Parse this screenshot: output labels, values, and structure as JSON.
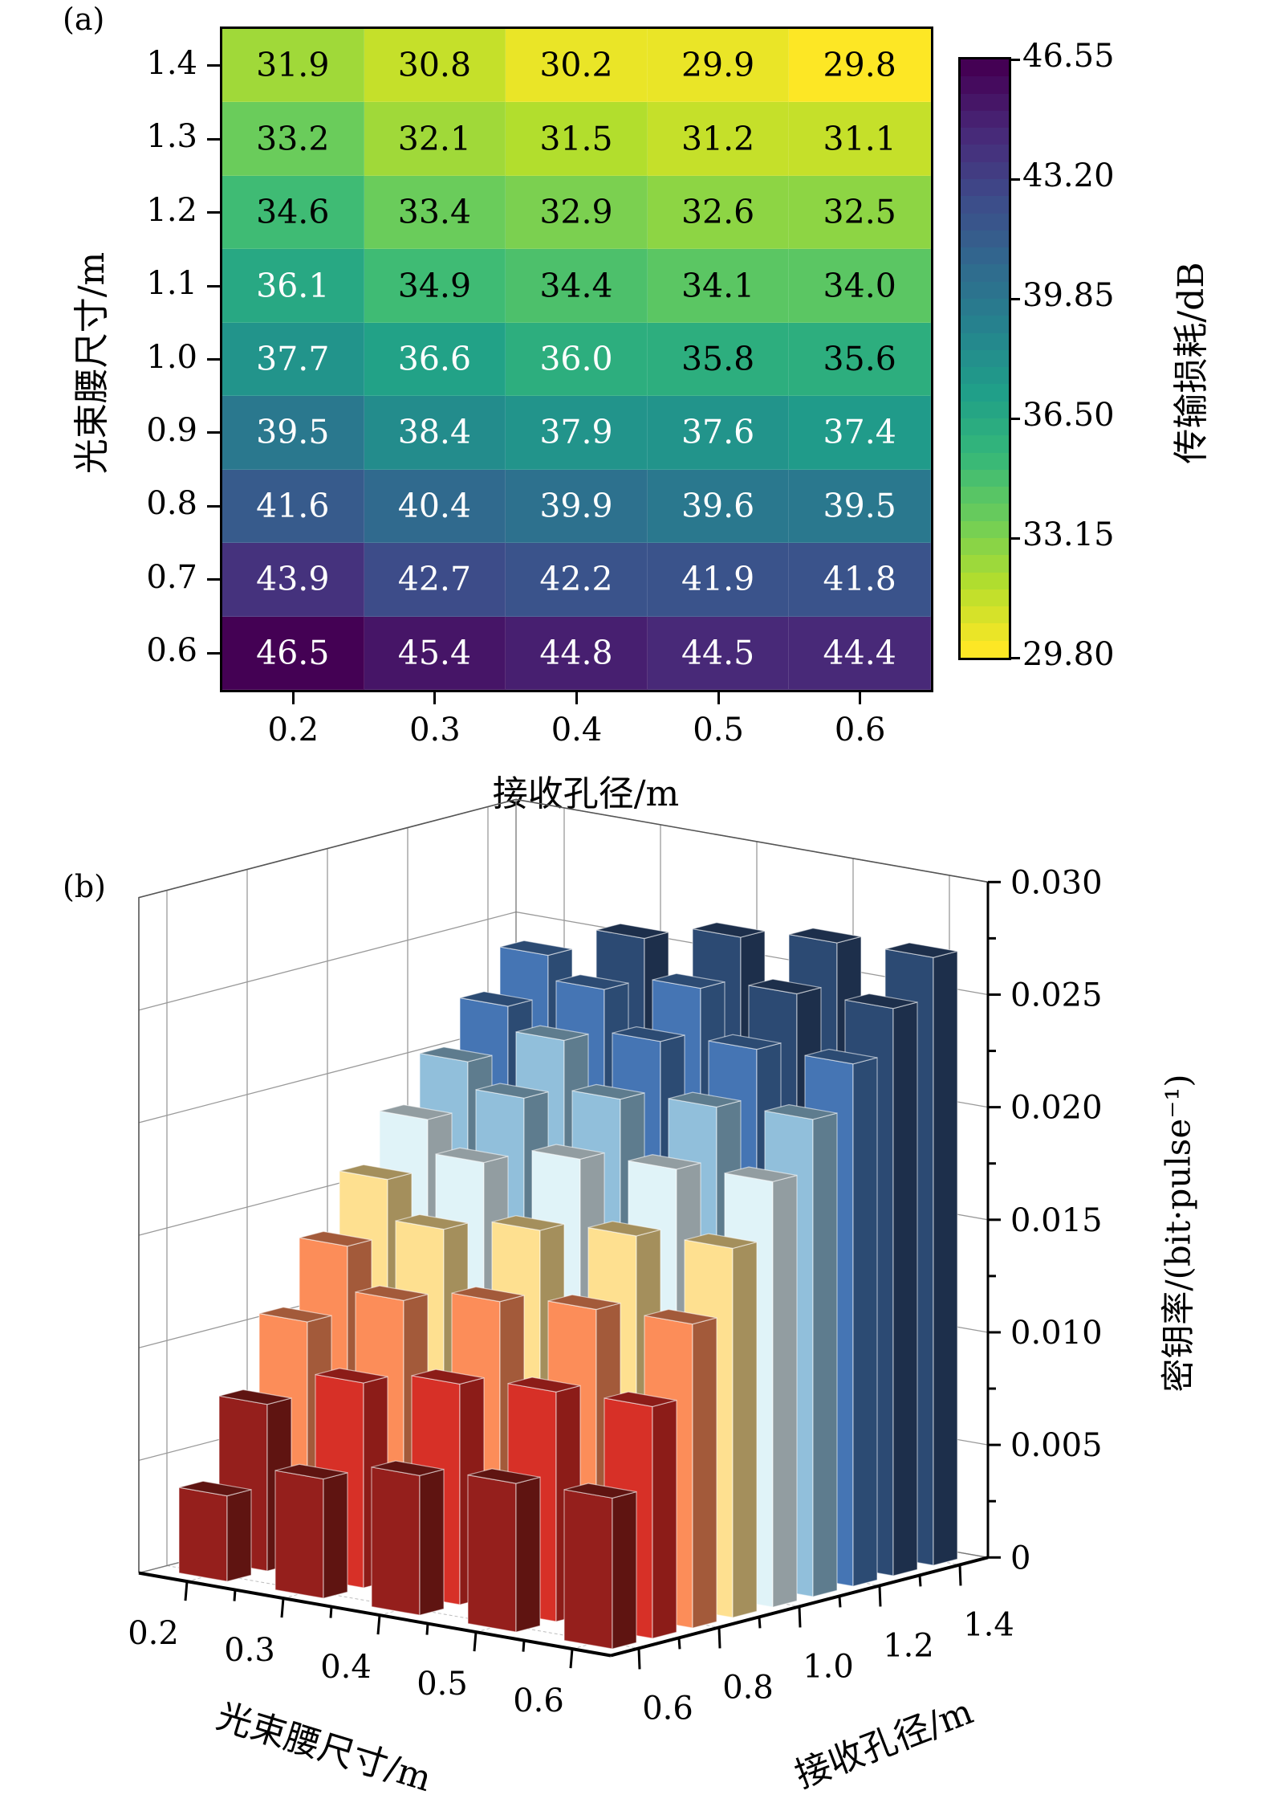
{
  "panels": {
    "a": {
      "label": "(a)",
      "chart_data": {
        "type": "heatmap",
        "title": "",
        "xlabel": "接收孔径/m",
        "ylabel": "光束腰尺寸/m",
        "x_categories": [
          "0.2",
          "0.3",
          "0.4",
          "0.5",
          "0.6"
        ],
        "y_categories": [
          "1.4",
          "1.3",
          "1.2",
          "1.1",
          "1.0",
          "0.9",
          "0.8",
          "0.7",
          "0.6"
        ],
        "values": [
          [
            31.9,
            30.8,
            30.2,
            29.9,
            29.8
          ],
          [
            33.2,
            32.1,
            31.5,
            31.2,
            31.1
          ],
          [
            34.6,
            33.4,
            32.9,
            32.6,
            32.5
          ],
          [
            36.1,
            34.9,
            34.4,
            34.1,
            34.0
          ],
          [
            37.7,
            36.6,
            36.0,
            35.8,
            35.6
          ],
          [
            39.5,
            38.4,
            37.9,
            37.6,
            37.4
          ],
          [
            41.6,
            40.4,
            39.9,
            39.6,
            39.5
          ],
          [
            43.9,
            42.7,
            42.2,
            41.9,
            41.8
          ],
          [
            46.5,
            45.4,
            44.8,
            44.5,
            44.4
          ]
        ],
        "value_labels": [
          [
            "31.9",
            "30.8",
            "30.2",
            "29.9",
            "29.8"
          ],
          [
            "33.2",
            "32.1",
            "31.5",
            "31.2",
            "31.1"
          ],
          [
            "34.6",
            "33.4",
            "32.9",
            "32.6",
            "32.5"
          ],
          [
            "36.1",
            "34.9",
            "34.4",
            "34.1",
            "34.0"
          ],
          [
            "37.7",
            "36.6",
            "36.0",
            "35.8",
            "35.6"
          ],
          [
            "39.5",
            "38.4",
            "37.9",
            "37.6",
            "37.4"
          ],
          [
            "41.6",
            "40.4",
            "39.9",
            "39.6",
            "39.5"
          ],
          [
            "43.9",
            "42.7",
            "42.2",
            "41.9",
            "41.8"
          ],
          [
            "46.5",
            "45.4",
            "44.8",
            "44.5",
            "44.4"
          ]
        ],
        "colormap": "viridis (reversed: high = dark purple)",
        "colorbar": {
          "label": "传输损耗/dB",
          "range": [
            29.8,
            46.55
          ],
          "ticks": [
            "46.55",
            "43.20",
            "39.85",
            "36.50",
            "33.15",
            "29.80"
          ],
          "levels": 35
        }
      }
    },
    "b": {
      "label": "(b)",
      "chart_data": {
        "type": "bar3d",
        "title": "",
        "xlabel": "光束腰尺寸/m",
        "ylabel": "接收孔径/m",
        "zlabel": "密钥率/(bit·pulse⁻¹)",
        "x_categories": [
          "0.2",
          "0.3",
          "0.4",
          "0.5",
          "0.6"
        ],
        "y_values": [
          0.6,
          0.7,
          0.8,
          0.9,
          1.0,
          1.1,
          1.2,
          1.3,
          1.4
        ],
        "y_tick_labels": [
          "0.6",
          "0.8",
          "1.0",
          "1.2",
          "1.4"
        ],
        "z_tick_labels": [
          "0",
          "0.005",
          "0.010",
          "0.015",
          "0.020",
          "0.025",
          "0.030"
        ],
        "zlim": [
          0,
          0.03
        ],
        "values_by_y": [
          [
            0.0038,
            0.0053,
            0.0062,
            0.0066,
            0.0067
          ],
          [
            0.0074,
            0.0091,
            0.0098,
            0.0102,
            0.0103
          ],
          [
            0.0106,
            0.0123,
            0.013,
            0.0134,
            0.0135
          ],
          [
            0.0135,
            0.015,
            0.0157,
            0.0162,
            0.0164
          ],
          [
            0.016,
            0.0175,
            0.0184,
            0.0187,
            0.0189
          ],
          [
            0.0182,
            0.0199,
            0.0206,
            0.021,
            0.0212
          ],
          [
            0.0203,
            0.022,
            0.0227,
            0.0231,
            0.0232
          ],
          [
            0.0223,
            0.0238,
            0.0246,
            0.0251,
            0.0252
          ],
          [
            0.0241,
            0.0256,
            0.0264,
            0.0269,
            0.027
          ]
        ],
        "color_levels": [
          {
            "max": 0.0075,
            "front": "#951f1c",
            "side": "#5f1411"
          },
          {
            "max": 0.0105,
            "front": "#d73027",
            "side": "#8c1c18"
          },
          {
            "max": 0.0135,
            "front": "#fc8d59",
            "side": "#a35a3a"
          },
          {
            "max": 0.0165,
            "front": "#fee090",
            "side": "#a48f5c"
          },
          {
            "max": 0.019,
            "front": "#e0f3f8",
            "side": "#929da1"
          },
          {
            "max": 0.022,
            "front": "#91bfdb",
            "side": "#5e7c8e"
          },
          {
            "max": 0.025,
            "front": "#4575b4",
            "side": "#2c4b73"
          },
          {
            "max": 1.0,
            "front": "#2c4a73",
            "side": "#1d2f4b"
          }
        ]
      }
    }
  }
}
